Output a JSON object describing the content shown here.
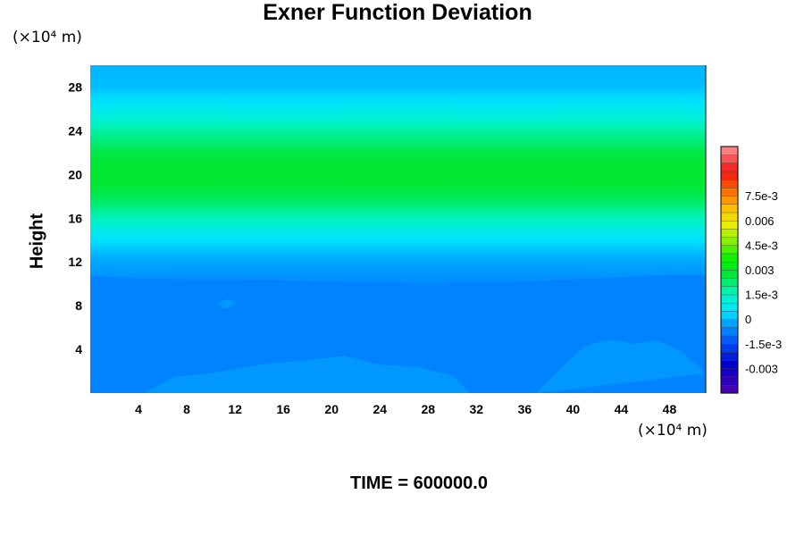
{
  "chart_data": {
    "type": "heatmap",
    "title": "Exner Function Deviation",
    "xlabel": "",
    "ylabel": "Height",
    "x_unit": "(×10⁴ m)",
    "y_unit": "(×10⁴ m)",
    "xlim": [
      0,
      51
    ],
    "ylim": [
      0,
      30
    ],
    "x_ticks": [
      "4",
      "8",
      "12",
      "16",
      "20",
      "24",
      "28",
      "32",
      "36",
      "40",
      "44",
      "48"
    ],
    "y_ticks": [
      "4",
      "8",
      "12",
      "16",
      "20",
      "24",
      "28"
    ],
    "grid": false,
    "colorbar": {
      "range": [
        -0.0045,
        0.0105
      ],
      "tick_labels": [
        "-0.003",
        "-1.5e-3",
        "0",
        "1.5e-3",
        "0.003",
        "4.5e-3",
        "0.006",
        "7.5e-3"
      ],
      "tick_values": [
        -0.003,
        -0.0015,
        0,
        0.0015,
        0.003,
        0.0045,
        0.006,
        0.0075
      ],
      "placement": "right"
    },
    "height_profile": [
      {
        "y": 0,
        "value": -0.0007
      },
      {
        "y": 2,
        "value": -0.0007
      },
      {
        "y": 4,
        "value": -0.0007
      },
      {
        "y": 6,
        "value": -0.0008
      },
      {
        "y": 8,
        "value": -0.0008
      },
      {
        "y": 10,
        "value": -0.0006
      },
      {
        "y": 11,
        "value": -0.0004
      },
      {
        "y": 12,
        "value": -0.0002
      },
      {
        "y": 13,
        "value": 0.0001
      },
      {
        "y": 14,
        "value": 0.0005
      },
      {
        "y": 15,
        "value": 0.001
      },
      {
        "y": 16,
        "value": 0.0016
      },
      {
        "y": 17,
        "value": 0.0021
      },
      {
        "y": 18,
        "value": 0.0025
      },
      {
        "y": 19,
        "value": 0.0028
      },
      {
        "y": 20,
        "value": 0.0029
      },
      {
        "y": 21,
        "value": 0.0028
      },
      {
        "y": 22,
        "value": 0.0026
      },
      {
        "y": 23,
        "value": 0.0022
      },
      {
        "y": 24,
        "value": 0.0018
      },
      {
        "y": 25,
        "value": 0.0013
      },
      {
        "y": 26,
        "value": 0.0008
      },
      {
        "y": 27,
        "value": 0.0004
      },
      {
        "y": 28,
        "value": 0.0001
      },
      {
        "y": 29,
        "value": 0.0
      },
      {
        "y": 30,
        "value": 0.0
      }
    ],
    "features": [
      {
        "type": "boundary",
        "between": [
          -0.0007,
          -0.0004
        ],
        "x": [
          0,
          4,
          8,
          12,
          16,
          20,
          24,
          28,
          32,
          36,
          40,
          44,
          48,
          51
        ],
        "y": [
          10.7,
          10.5,
          10.4,
          10.4,
          10.3,
          10.2,
          10.1,
          9.9,
          10.1,
          10.2,
          10.4,
          10.6,
          10.8,
          10.8
        ]
      },
      {
        "type": "region",
        "value": -0.0004,
        "x": [
          4.5,
          7,
          10,
          14,
          18,
          21,
          24,
          27,
          30,
          31.5
        ],
        "y": [
          0,
          1.5,
          1.8,
          2.6,
          3.0,
          3.4,
          2.6,
          2.4,
          1.6,
          0
        ]
      },
      {
        "type": "region",
        "value": -0.0004,
        "x": [
          37,
          39,
          41,
          43,
          45,
          47,
          49,
          51
        ],
        "y": [
          0,
          2.3,
          4.3,
          4.9,
          4.5,
          4.8,
          3.8,
          1.8
        ]
      },
      {
        "type": "region",
        "value": -0.0004,
        "x": [
          10.4,
          11.4,
          12.2,
          11.3,
          10.4
        ],
        "y": [
          8.2,
          8.6,
          8.3,
          7.7,
          8.2
        ]
      }
    ]
  },
  "annotation": {
    "time_label": "TIME = 600000.0"
  }
}
